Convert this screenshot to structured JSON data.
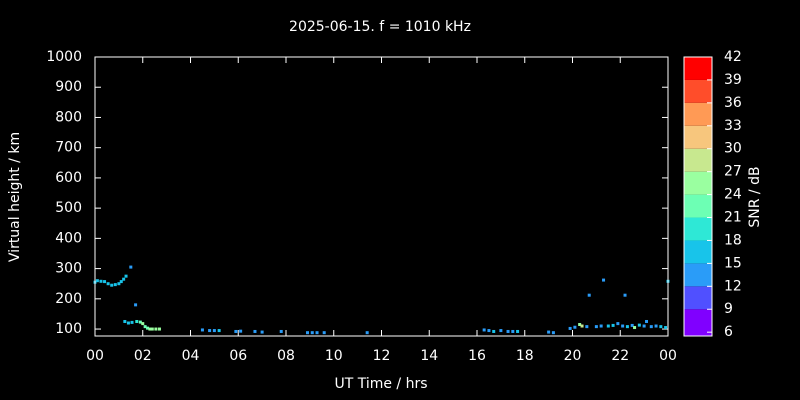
{
  "chart_data": {
    "type": "scatter",
    "title": "2025-06-15. f = 1010 kHz",
    "x_label": "UT Time / hrs",
    "y_label": "Virtual height / km",
    "colorbar_label": "SNR / dB",
    "xlim": [
      0,
      24
    ],
    "ylim": [
      77,
      1000
    ],
    "xticks": [
      {
        "value": 0,
        "label": "00"
      },
      {
        "value": 2,
        "label": "02"
      },
      {
        "value": 4,
        "label": "04"
      },
      {
        "value": 6,
        "label": "06"
      },
      {
        "value": 8,
        "label": "08"
      },
      10,
      12,
      14,
      16,
      18,
      20,
      22,
      {
        "value": 24,
        "label": "00"
      }
    ],
    "yticks": [
      100,
      200,
      300,
      400,
      500,
      600,
      700,
      800,
      900,
      1000
    ],
    "clim": [
      5.5,
      42
    ],
    "cticks": [
      6,
      9,
      12,
      15,
      18,
      21,
      24,
      27,
      30,
      33,
      36,
      39,
      42
    ],
    "colorbar_colors": [
      "#8000ff",
      "#5050ff",
      "#2a9cf8",
      "#18c4ea",
      "#2ee8d6",
      "#6dffb4",
      "#9affa0",
      "#c8e88f",
      "#f7c67d",
      "#ff9a55",
      "#ff4d2a",
      "#ff0000"
    ],
    "x": [
      0.0,
      0.1,
      0.25,
      0.4,
      0.55,
      0.7,
      0.85,
      1.0,
      1.1,
      1.2,
      1.3,
      1.5,
      1.7,
      1.25,
      1.4,
      1.55,
      1.75,
      1.9,
      2.0,
      2.1,
      2.2,
      2.3,
      2.4,
      2.55,
      2.7,
      4.5,
      4.8,
      5.0,
      5.2,
      5.9,
      6.1,
      6.7,
      7.0,
      7.8,
      8.9,
      9.1,
      9.3,
      9.6,
      11.4,
      16.3,
      16.5,
      16.7,
      17.0,
      17.3,
      17.5,
      17.7,
      19.0,
      19.2,
      19.9,
      20.1,
      20.3,
      20.4,
      20.6,
      20.7,
      21.0,
      21.2,
      21.3,
      21.5,
      21.7,
      21.9,
      22.1,
      22.2,
      22.3,
      22.5,
      22.6,
      22.8,
      23.0,
      23.1,
      23.3,
      23.5,
      23.7,
      23.9,
      24.0
    ],
    "y": [
      255,
      260,
      258,
      257,
      250,
      245,
      247,
      250,
      257,
      265,
      275,
      305,
      180,
      125,
      120,
      122,
      125,
      123,
      118,
      108,
      103,
      100,
      100,
      100,
      100,
      97,
      95,
      95,
      95,
      92,
      93,
      92,
      90,
      92,
      88,
      88,
      88,
      88,
      88,
      97,
      95,
      92,
      95,
      92,
      92,
      92,
      90,
      88,
      102,
      106,
      115,
      110,
      108,
      212,
      108,
      110,
      262,
      110,
      112,
      118,
      110,
      212,
      108,
      112,
      105,
      113,
      110,
      125,
      108,
      110,
      108,
      105,
      258
    ],
    "z": [
      16,
      16,
      16,
      15,
      15,
      15,
      16,
      16,
      16,
      16,
      17,
      14,
      14,
      17,
      16,
      17,
      20,
      21,
      24,
      23,
      22,
      25,
      25,
      24,
      25,
      13,
      14,
      14,
      15,
      13,
      13,
      12,
      12,
      13,
      12,
      12,
      12,
      12,
      12,
      14,
      14,
      15,
      13,
      14,
      14,
      15,
      13,
      13,
      13,
      14,
      24,
      27,
      14,
      14,
      13,
      13,
      14,
      15,
      16,
      14,
      14,
      13,
      16,
      14,
      24,
      15,
      13,
      13,
      14,
      14,
      16,
      17,
      15
    ]
  }
}
